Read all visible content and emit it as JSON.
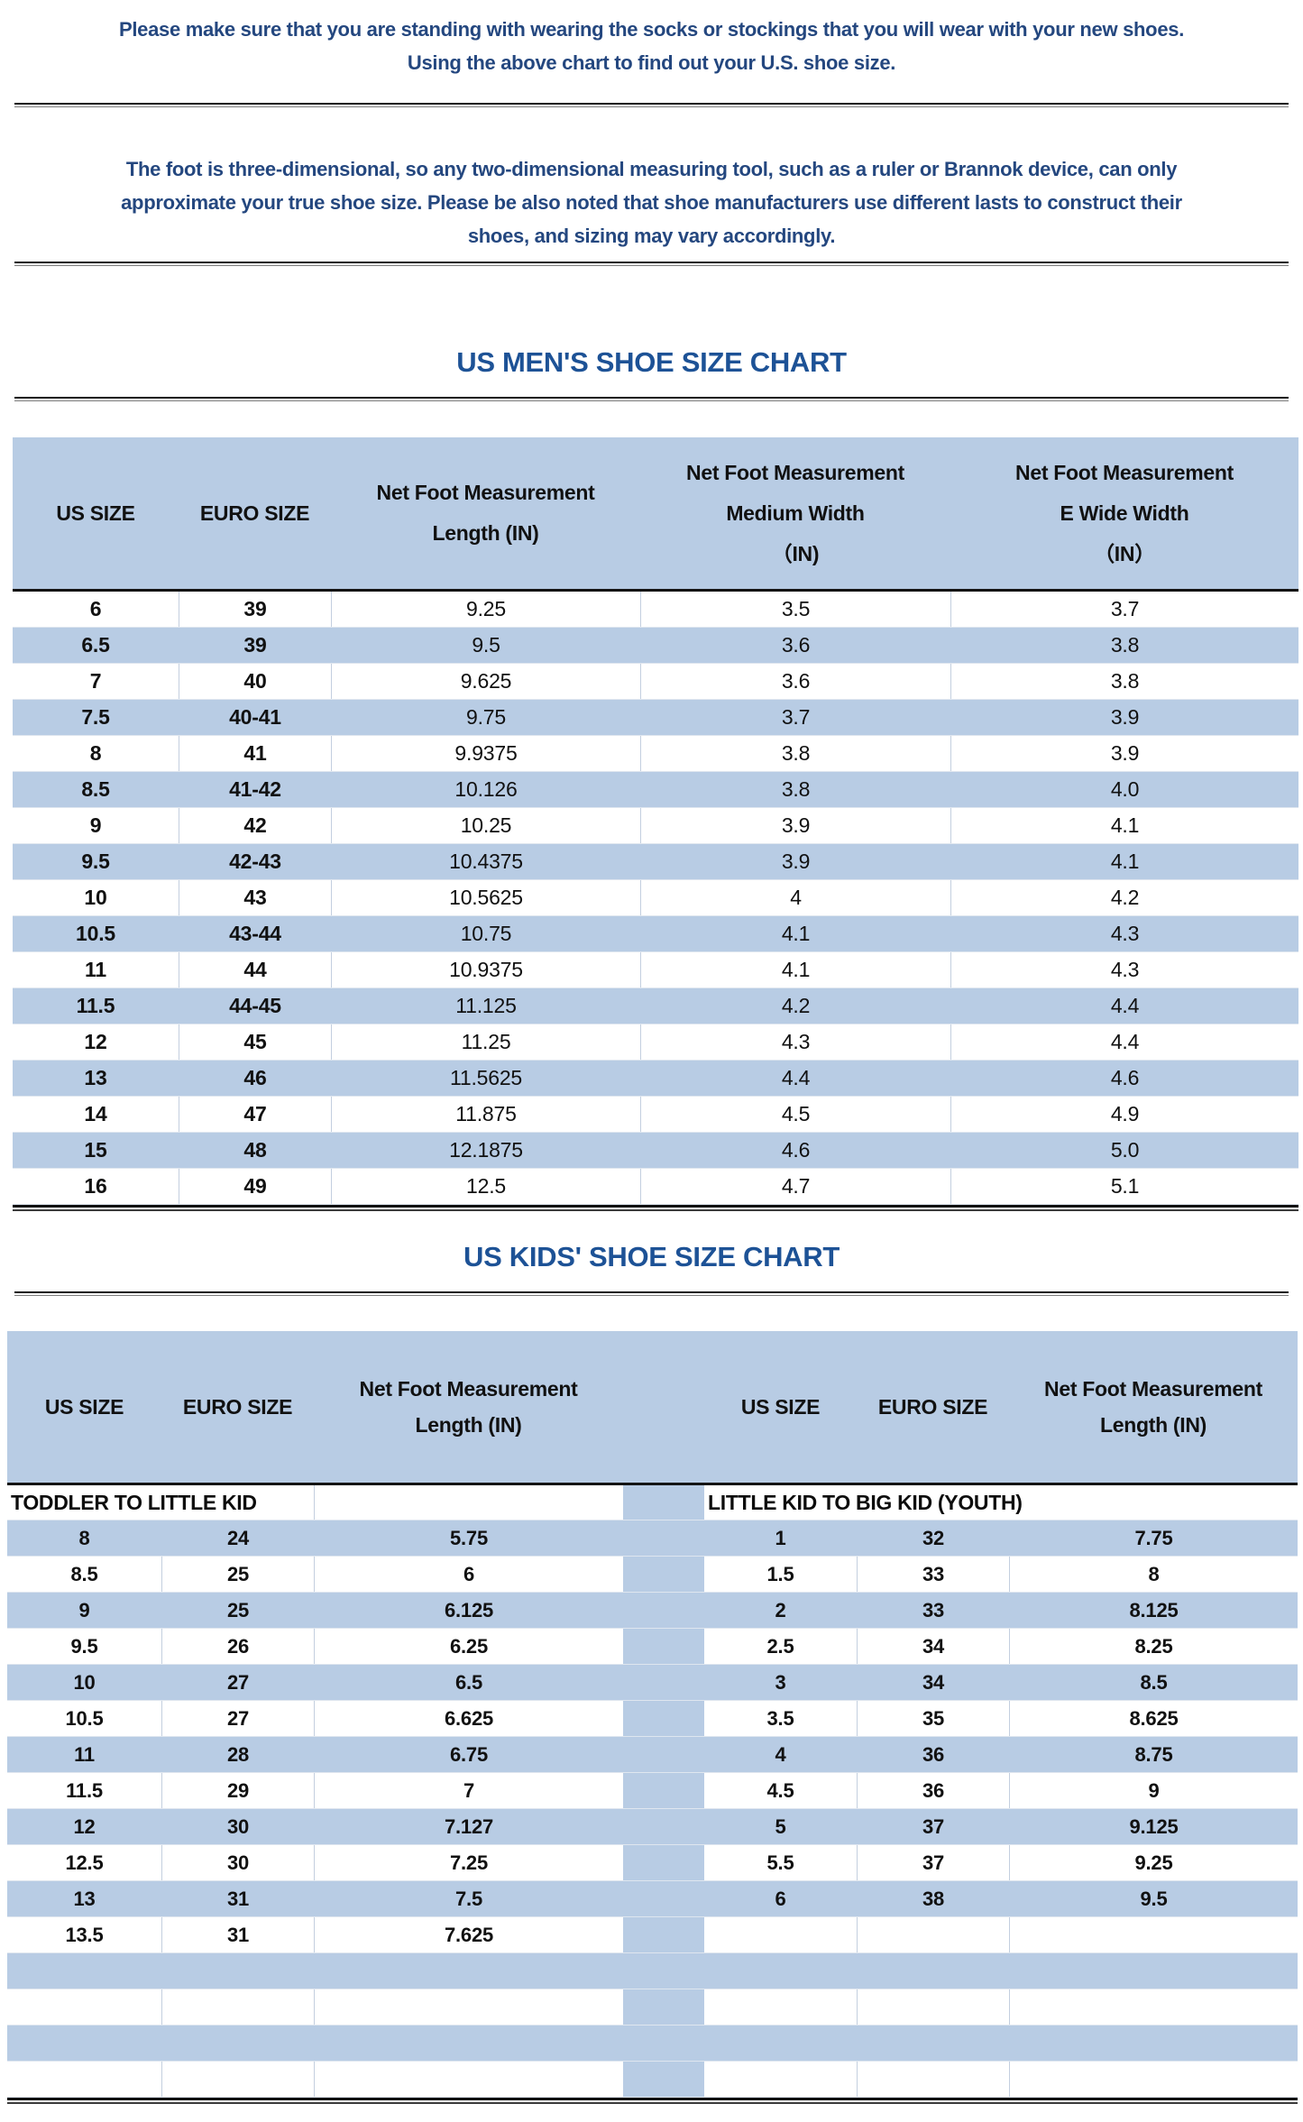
{
  "document": {
    "intro": "Please make sure that you are standing with wearing the socks or stockings that you will wear with your new shoes.\nUsing the above chart to find out your U.S. shoe size.",
    "note": "The foot is three-dimensional, so any two-dimensional measuring tool, such as a ruler or Brannok device, can only\napproximate your true shoe size. Please be also noted that shoe manufacturers use different lasts to construct their\nshoes, and sizing may vary accordingly.",
    "colors": {
      "row_highlight": "#B8CCE4",
      "body_text": "#24477F",
      "title_text": "#1D5296"
    }
  },
  "mens_chart": {
    "title": "US MEN'S SHOE SIZE CHART",
    "headers": [
      "US SIZE",
      "EURO SIZE",
      "Net Foot Measurement\nLength (IN)",
      "Net Foot Measurement\nMedium Width\n（IN)",
      "Net Foot Measurement\nE Wide Width\n（IN）"
    ],
    "rows": [
      [
        "6",
        "39",
        "9.25",
        "3.5",
        "3.7"
      ],
      [
        "6.5",
        "39",
        "9.5",
        "3.6",
        "3.8"
      ],
      [
        "7",
        "40",
        "9.625",
        "3.6",
        "3.8"
      ],
      [
        "7.5",
        "40-41",
        "9.75",
        "3.7",
        "3.9"
      ],
      [
        "8",
        "41",
        "9.9375",
        "3.8",
        "3.9"
      ],
      [
        "8.5",
        "41-42",
        "10.126",
        "3.8",
        "4.0"
      ],
      [
        "9",
        "42",
        "10.25",
        "3.9",
        "4.1"
      ],
      [
        "9.5",
        "42-43",
        "10.4375",
        "3.9",
        "4.1"
      ],
      [
        "10",
        "43",
        "10.5625",
        "4",
        "4.2"
      ],
      [
        "10.5",
        "43-44",
        "10.75",
        "4.1",
        "4.3"
      ],
      [
        "11",
        "44",
        "10.9375",
        "4.1",
        "4.3"
      ],
      [
        "11.5",
        "44-45",
        "11.125",
        "4.2",
        "4.4"
      ],
      [
        "12",
        "45",
        "11.25",
        "4.3",
        "4.4"
      ],
      [
        "13",
        "46",
        "11.5625",
        "4.4",
        "4.6"
      ],
      [
        "14",
        "47",
        "11.875",
        "4.5",
        "4.9"
      ],
      [
        "15",
        "48",
        "12.1875",
        "4.6",
        "5.0"
      ],
      [
        "16",
        "49",
        "12.5",
        "4.7",
        "5.1"
      ]
    ]
  },
  "kids_chart": {
    "title": "US KIDS' SHOE SIZE CHART",
    "left": {
      "section_title": "TODDLER TO LITTLE KID",
      "headers": [
        "US SIZE",
        "EURO SIZE",
        "Net Foot Measurement\nLength (IN)"
      ],
      "rows": [
        [
          "8",
          "24",
          "5.75"
        ],
        [
          "8.5",
          "25",
          "6"
        ],
        [
          "9",
          "25",
          "6.125"
        ],
        [
          "9.5",
          "26",
          "6.25"
        ],
        [
          "10",
          "27",
          "6.5"
        ],
        [
          "10.5",
          "27",
          "6.625"
        ],
        [
          "11",
          "28",
          "6.75"
        ],
        [
          "11.5",
          "29",
          "7"
        ],
        [
          "12",
          "30",
          "7.127"
        ],
        [
          "12.5",
          "30",
          "7.25"
        ],
        [
          "13",
          "31",
          "7.5"
        ],
        [
          "13.5",
          "31",
          "7.625"
        ]
      ]
    },
    "right": {
      "section_title": "LITTLE KID TO BIG KID (YOUTH)",
      "headers": [
        "US SIZE",
        "EURO SIZE",
        "Net Foot Measurement\nLength (IN)"
      ],
      "rows": [
        [
          "1",
          "32",
          "7.75"
        ],
        [
          "1.5",
          "33",
          "8"
        ],
        [
          "2",
          "33",
          "8.125"
        ],
        [
          "2.5",
          "34",
          "8.25"
        ],
        [
          "3",
          "34",
          "8.5"
        ],
        [
          "3.5",
          "35",
          "8.625"
        ],
        [
          "4",
          "36",
          "8.75"
        ],
        [
          "4.5",
          "36",
          "9"
        ],
        [
          "5",
          "37",
          "9.125"
        ],
        [
          "5.5",
          "37",
          "9.25"
        ],
        [
          "6",
          "38",
          "9.5"
        ]
      ]
    },
    "empty_trailing_rows": 4
  }
}
